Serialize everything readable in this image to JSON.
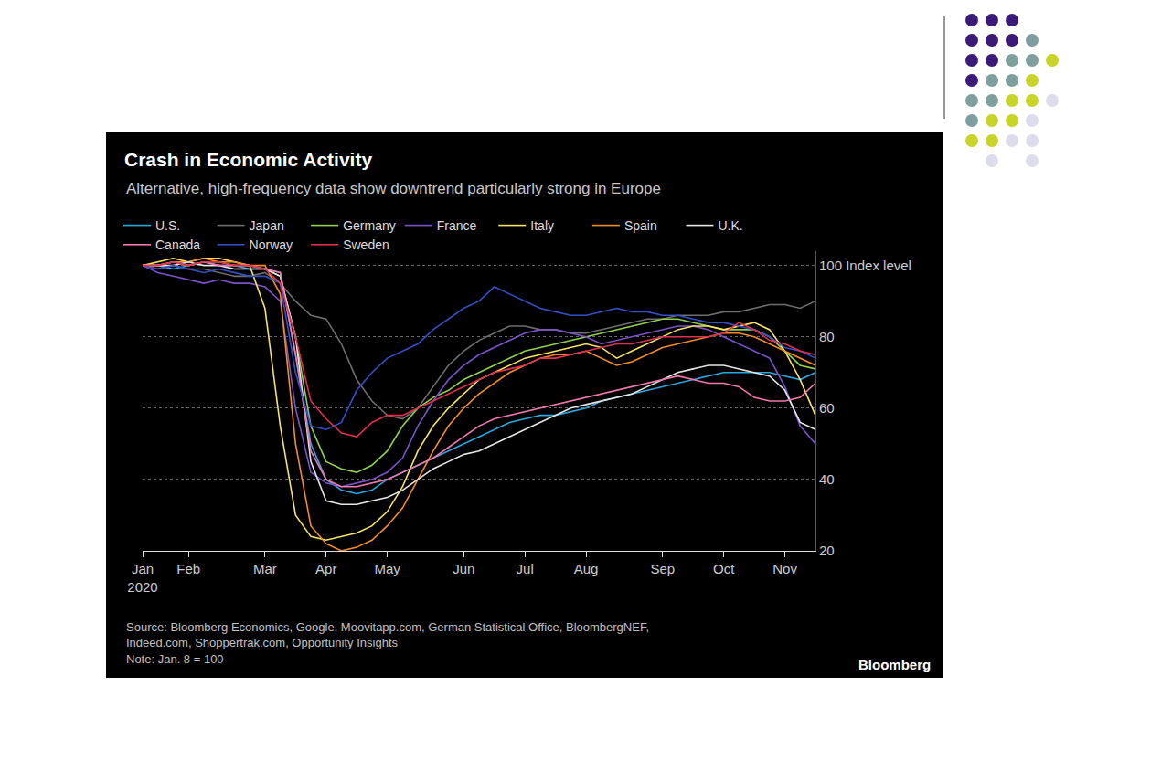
{
  "chart_data": {
    "type": "line",
    "title": "Crash in Economic Activity",
    "subtitle": "Alternative, high-frequency data show downtrend particularly strong in Europe",
    "categories": [
      "Jan\n2020",
      null,
      null,
      "Feb",
      null,
      null,
      null,
      null,
      "Mar",
      null,
      null,
      null,
      "Apr",
      null,
      null,
      null,
      "May",
      null,
      null,
      null,
      null,
      "Jun",
      null,
      null,
      null,
      "Jul",
      null,
      null,
      null,
      "Aug",
      null,
      null,
      null,
      null,
      "Sep",
      null,
      null,
      null,
      "Oct",
      null,
      null,
      null,
      "Nov",
      null,
      null
    ],
    "series": [
      {
        "name": "U.S.",
        "color": "#29a9e0",
        "values": [
          100,
          100,
          99,
          100,
          101,
          100,
          100,
          99,
          99,
          98,
          75,
          50,
          40,
          37,
          36,
          37,
          40,
          42,
          44,
          46,
          48,
          50,
          52,
          54,
          56,
          57,
          58,
          58,
          59,
          60,
          62,
          63,
          64,
          65,
          66,
          67,
          68,
          69,
          70,
          70,
          70,
          70,
          69,
          68,
          70
        ]
      },
      {
        "name": "Japan",
        "color": "#6e6e6e",
        "values": [
          100,
          99,
          100,
          99,
          99,
          98,
          97,
          97,
          98,
          95,
          90,
          86,
          85,
          78,
          68,
          62,
          58,
          57,
          60,
          66,
          72,
          76,
          79,
          81,
          83,
          83,
          82,
          82,
          81,
          81,
          82,
          83,
          84,
          85,
          85,
          86,
          86,
          86,
          87,
          87,
          88,
          89,
          89,
          88,
          90
        ]
      },
      {
        "name": "Germany",
        "color": "#8fd14f",
        "values": [
          100,
          100,
          101,
          100,
          101,
          101,
          100,
          100,
          99,
          97,
          80,
          55,
          45,
          43,
          42,
          44,
          48,
          55,
          60,
          63,
          65,
          68,
          70,
          72,
          74,
          76,
          77,
          78,
          79,
          80,
          81,
          82,
          83,
          84,
          85,
          85,
          84,
          83,
          82,
          82,
          82,
          80,
          76,
          72,
          71
        ]
      },
      {
        "name": "France",
        "color": "#7b52c9",
        "values": [
          100,
          98,
          97,
          96,
          95,
          96,
          95,
          95,
          94,
          90,
          60,
          42,
          39,
          38,
          39,
          40,
          42,
          46,
          55,
          62,
          68,
          72,
          75,
          77,
          79,
          81,
          82,
          82,
          81,
          80,
          78,
          79,
          80,
          81,
          82,
          83,
          83,
          82,
          80,
          78,
          76,
          74,
          66,
          55,
          50
        ]
      },
      {
        "name": "Italy",
        "color": "#f7e463",
        "values": [
          100,
          101,
          102,
          101,
          102,
          102,
          101,
          100,
          88,
          55,
          30,
          24,
          23,
          24,
          25,
          27,
          31,
          38,
          48,
          55,
          60,
          64,
          68,
          70,
          72,
          74,
          75,
          76,
          77,
          78,
          77,
          74,
          76,
          78,
          80,
          82,
          83,
          83,
          82,
          83,
          84,
          82,
          76,
          68,
          58
        ]
      },
      {
        "name": "Spain",
        "color": "#f28c28",
        "values": [
          100,
          100,
          101,
          101,
          102,
          101,
          101,
          100,
          100,
          92,
          50,
          27,
          22,
          20,
          21,
          23,
          27,
          32,
          40,
          48,
          55,
          60,
          64,
          67,
          70,
          72,
          74,
          75,
          75,
          76,
          74,
          72,
          73,
          75,
          77,
          78,
          79,
          80,
          81,
          81,
          80,
          78,
          76,
          74,
          72
        ]
      },
      {
        "name": "U.K.",
        "color": "#e6e6e6",
        "values": [
          100,
          100,
          100,
          101,
          100,
          100,
          99,
          99,
          99,
          97,
          80,
          45,
          34,
          33,
          33,
          34,
          35,
          37,
          40,
          43,
          45,
          47,
          48,
          50,
          52,
          54,
          56,
          58,
          60,
          61,
          62,
          63,
          64,
          66,
          68,
          70,
          71,
          72,
          72,
          71,
          70,
          69,
          65,
          56,
          54
        ]
      },
      {
        "name": "Canada",
        "color": "#f07ab0",
        "values": [
          100,
          100,
          101,
          100,
          101,
          100,
          100,
          100,
          99,
          98,
          75,
          48,
          40,
          38,
          38,
          39,
          40,
          42,
          44,
          46,
          49,
          52,
          55,
          57,
          58,
          59,
          60,
          61,
          62,
          63,
          64,
          65,
          66,
          67,
          68,
          69,
          68,
          67,
          67,
          66,
          63,
          62,
          62,
          63,
          67
        ]
      },
      {
        "name": "Norway",
        "color": "#3450c8",
        "values": [
          100,
          99,
          100,
          99,
          98,
          99,
          98,
          97,
          97,
          95,
          70,
          55,
          54,
          56,
          65,
          70,
          74,
          76,
          78,
          82,
          85,
          88,
          90,
          94,
          92,
          90,
          88,
          87,
          86,
          86,
          87,
          88,
          87,
          87,
          86,
          86,
          85,
          84,
          84,
          83,
          82,
          80,
          77,
          76,
          74
        ]
      },
      {
        "name": "Sweden",
        "color": "#e0304e",
        "values": [
          100,
          100,
          101,
          100,
          101,
          101,
          100,
          100,
          99,
          95,
          80,
          62,
          57,
          53,
          52,
          56,
          58,
          58,
          60,
          62,
          64,
          66,
          68,
          70,
          71,
          72,
          74,
          74,
          75,
          76,
          77,
          78,
          78,
          79,
          80,
          80,
          80,
          80,
          81,
          84,
          82,
          79,
          78,
          76,
          75
        ]
      }
    ],
    "ylim": [
      20,
      104
    ],
    "yticks": [
      20,
      40,
      60,
      80,
      {
        "value": 100,
        "label": "100 Index level"
      }
    ],
    "grid": true,
    "legend": "top",
    "annotations": [
      "Source: Bloomberg Economics, Google, Moovitapp.com, German Statistical Office, BloombergNEF,\nIndeed.com, Shoppertrak.com, Opportunity Insights",
      "Note: Jan. 8 = 100",
      "Bloomberg"
    ]
  }
}
